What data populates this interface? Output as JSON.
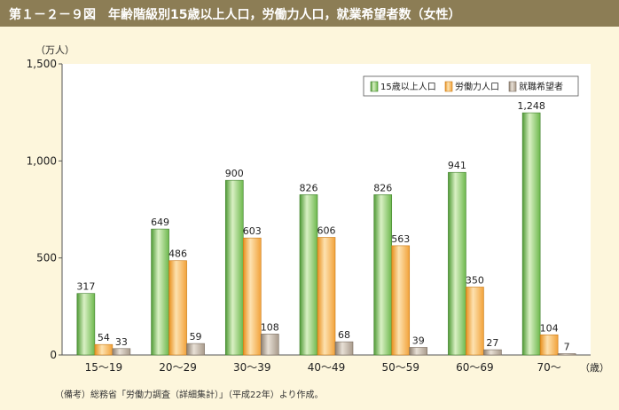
{
  "header": {
    "title": "第１－２－９図　年齢階級別15歳以上人口，労働力人口，就業希望者数（女性）"
  },
  "note": "（備考）総務省「労働力調査（詳細集計）」（平成22年）より作成。",
  "colors": {
    "title_bar": "#8c7d55",
    "background": "#fdf6dc",
    "population": "#7dc35a",
    "labor": "#f6b04a",
    "seekers": "#b5a898"
  },
  "chart_data": {
    "type": "bar",
    "y_unit_label": "（万人）",
    "x_unit_label": "（歳）",
    "categories": [
      "15～19",
      "20～29",
      "30～39",
      "40～49",
      "50～59",
      "60～69",
      "70～"
    ],
    "series": [
      {
        "name": "15歳以上人口",
        "values": [
          317,
          649,
          900,
          826,
          826,
          941,
          1248
        ],
        "labels": [
          "317",
          "649",
          "900",
          "826",
          "826",
          "941",
          "1,248"
        ]
      },
      {
        "name": "労働力人口",
        "values": [
          54,
          486,
          603,
          606,
          563,
          350,
          104
        ],
        "labels": [
          "54",
          "486",
          "603",
          "606",
          "563",
          "350",
          "104"
        ]
      },
      {
        "name": "就職希望者",
        "values": [
          33,
          59,
          108,
          68,
          39,
          27,
          7
        ],
        "labels": [
          "33",
          "59",
          "108",
          "68",
          "39",
          "27",
          "7"
        ]
      }
    ],
    "ylim": [
      0,
      1500
    ],
    "yticks": [
      0,
      500,
      1000,
      1500
    ],
    "ytick_labels": [
      "0",
      "500",
      "1,000",
      "1,500"
    ],
    "grid": false,
    "legend_position": "top-right"
  }
}
